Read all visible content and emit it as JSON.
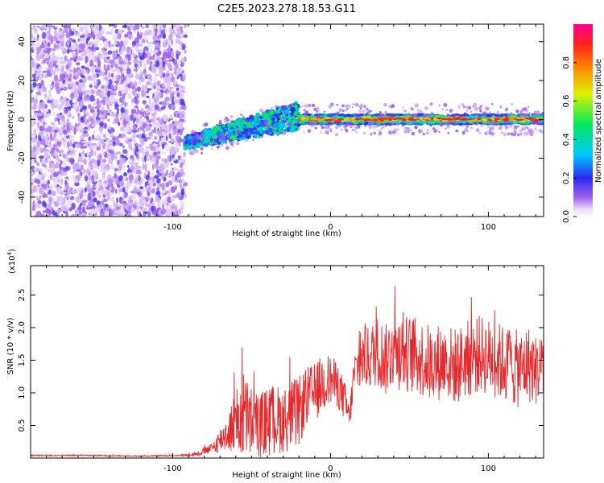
{
  "figure": {
    "title": "C2E5.2023.278.18.53.G11"
  },
  "colors": {
    "snr_line": "#e8282a",
    "axis": "#000000",
    "background": "#ffffff"
  },
  "chart_data": [
    {
      "type": "heatmap",
      "name": "spectrogram",
      "xlabel": "Height of straight line (km)",
      "ylabel": "Frequency (Hz)",
      "xlim": [
        -190,
        135
      ],
      "ylim": [
        -50,
        49
      ],
      "xticks": [
        -100,
        0,
        100
      ],
      "xtick_labels": [
        "-100",
        "0",
        "100"
      ],
      "yticks": [
        -40,
        -20,
        0,
        20,
        40
      ],
      "ytick_labels": [
        "-40",
        "-20",
        "0",
        "20",
        "40"
      ],
      "colorbar": {
        "label": "Normalized spectral amplitude",
        "range": [
          0.0,
          1.0
        ],
        "ticks": [
          0.0,
          0.2,
          0.4,
          0.6,
          0.8
        ],
        "tick_labels": [
          "0.0",
          "0.2",
          "0.4",
          "0.6",
          "0.8"
        ],
        "colormap": "rainbow (white-purple-blue-cyan-green-yellow-red-pink)"
      },
      "regions": [
        {
          "x_range": [
            -190,
            -92
          ],
          "y_range": [
            -50,
            49
          ],
          "level": 0.1,
          "description": "broadband noise"
        },
        {
          "x_range": [
            -92,
            -20
          ],
          "trend_y": [
            -12,
            2
          ],
          "level": 0.4
        },
        {
          "x_range": [
            -20,
            135
          ],
          "y_center": 0,
          "level": 0.9
        }
      ],
      "grid": false
    },
    {
      "type": "line",
      "name": "snr",
      "xlabel": "Height of straight line (km)",
      "ylabel": "SNR (10 * v/v)",
      "y_scale_label": "(x10",
      "y_scale_exponent": "4",
      "xlim": [
        -190,
        135
      ],
      "ylim": [
        0,
        2.95
      ],
      "xticks": [
        -100,
        0,
        100
      ],
      "xtick_labels": [
        "-100",
        "0",
        "100"
      ],
      "yticks": [
        0.5,
        1.0,
        1.5,
        2.0,
        2.5
      ],
      "ytick_labels": [
        "0.5",
        "1.0",
        "1.5",
        "2.0",
        "2.5"
      ],
      "series": [
        {
          "x": [
            -190,
            -150,
            -120,
            -95,
            -85,
            -75,
            -65,
            -60,
            -55,
            -50,
            -45,
            -40,
            -35,
            -30,
            -25,
            -20,
            -15,
            -10,
            -5,
            0,
            5,
            10,
            12,
            15,
            20,
            25,
            30,
            35,
            40,
            45,
            50,
            55,
            60,
            65,
            70,
            75,
            80,
            85,
            90,
            95,
            100,
            105,
            110,
            115,
            120,
            125,
            130,
            135
          ],
          "y": [
            0.04,
            0.04,
            0.03,
            0.04,
            0.06,
            0.15,
            0.4,
            0.55,
            0.65,
            0.55,
            0.5,
            0.55,
            0.6,
            0.58,
            0.65,
            0.7,
            0.95,
            1.0,
            1.15,
            1.2,
            1.1,
            0.8,
            0.6,
            1.3,
            1.5,
            1.55,
            1.65,
            1.5,
            1.7,
            1.6,
            1.6,
            1.55,
            1.5,
            1.4,
            1.5,
            1.45,
            1.4,
            1.5,
            1.55,
            1.6,
            1.55,
            1.5,
            1.45,
            1.4,
            1.35,
            1.45,
            1.35,
            1.4
          ],
          "envelope": [
            0.01,
            0.01,
            0.01,
            0.01,
            0.03,
            0.08,
            0.3,
            0.5,
            0.7,
            0.55,
            0.5,
            0.55,
            0.55,
            0.5,
            0.55,
            0.55,
            0.45,
            0.45,
            0.45,
            0.4,
            0.35,
            0.3,
            0.2,
            0.35,
            0.45,
            0.5,
            0.55,
            0.55,
            0.6,
            0.6,
            0.6,
            0.6,
            0.6,
            0.6,
            0.6,
            0.6,
            0.6,
            0.6,
            0.6,
            0.6,
            0.6,
            0.6,
            0.6,
            0.6,
            0.6,
            0.6,
            0.55,
            0.55
          ]
        }
      ],
      "grid": false
    }
  ]
}
